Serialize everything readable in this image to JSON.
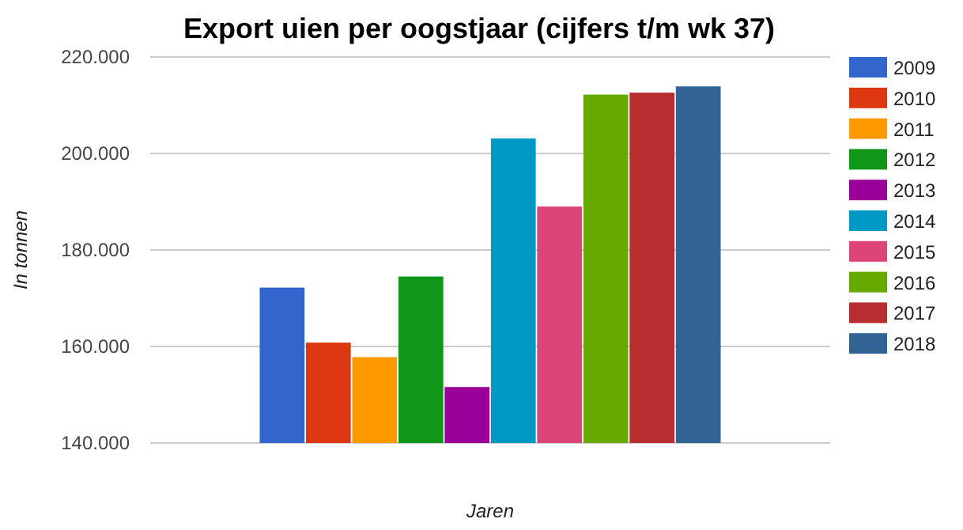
{
  "chart_data": {
    "type": "bar",
    "title": "Export uien per oogstjaar (cijfers t/m wk 37)",
    "xlabel": "Jaren",
    "ylabel": "In tonnen",
    "categories": [
      null
    ],
    "series": [
      {
        "name": "2009",
        "color": "#3366cc",
        "values": [
          172200
        ]
      },
      {
        "name": "2010",
        "color": "#dc3912",
        "values": [
          160800
        ]
      },
      {
        "name": "2011",
        "color": "#ff9900",
        "values": [
          157800
        ]
      },
      {
        "name": "2012",
        "color": "#109618",
        "values": [
          174500
        ]
      },
      {
        "name": "2013",
        "color": "#990099",
        "values": [
          151600
        ]
      },
      {
        "name": "2014",
        "color": "#0099c6",
        "values": [
          203100
        ]
      },
      {
        "name": "2015",
        "color": "#dd4477",
        "values": [
          189000
        ]
      },
      {
        "name": "2016",
        "color": "#66aa00",
        "values": [
          212200
        ]
      },
      {
        "name": "2017",
        "color": "#b82e2e",
        "values": [
          212600
        ]
      },
      {
        "name": "2018",
        "color": "#316395",
        "values": [
          213900
        ]
      }
    ],
    "ylim": [
      140000,
      220000
    ],
    "yticks": [
      {
        "value": 140000,
        "label": "140.000"
      },
      {
        "value": 160000,
        "label": "160.000"
      },
      {
        "value": 180000,
        "label": "180.000"
      },
      {
        "value": 200000,
        "label": "200.000"
      },
      {
        "value": 220000,
        "label": "220.000"
      }
    ],
    "grid": true,
    "legend": "right",
    "tick_labels": "y"
  }
}
